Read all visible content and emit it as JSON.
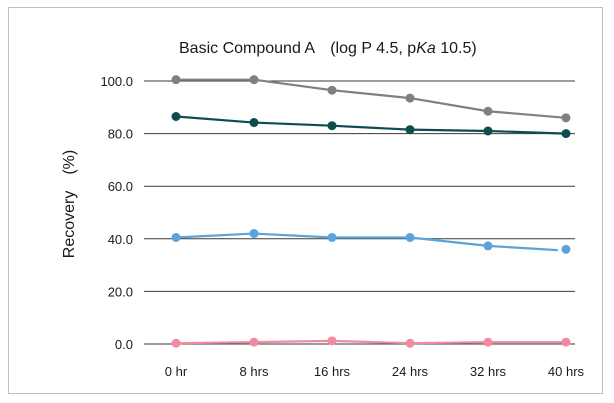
{
  "chart_data": {
    "type": "line",
    "title_parts": [
      "Basic Compound A　(log P 4.5, p",
      "Ka",
      " 10.5)"
    ],
    "ylabel": "Recovery　(%)",
    "xlabel": "",
    "categories": [
      "0 hr",
      "8 hrs",
      "16 hrs",
      "24 hrs",
      "32 hrs",
      "40 hrs"
    ],
    "ylim": [
      0,
      100
    ],
    "yticks": [
      "0.0",
      "20.0",
      "40.0",
      "60.0",
      "80.0",
      "100.0"
    ],
    "grid": true,
    "legend": "none",
    "series": [
      {
        "color": "#808080",
        "values": [
          100.5,
          100.5,
          96.5,
          93.5,
          88.5,
          86.0
        ],
        "line_to_last": true
      },
      {
        "color": "#0e4d4f",
        "values": [
          86.5,
          84.2,
          83.0,
          81.5,
          81.0,
          80.0
        ],
        "line_to_last": true
      },
      {
        "color": "#5ba3d9",
        "values": [
          40.5,
          42.0,
          40.5,
          40.5,
          37.3,
          36.0
        ],
        "line_to_last": false,
        "line_end_value": 35.7
      },
      {
        "color": "#f08ca0",
        "values": [
          0.3,
          0.7,
          1.2,
          0.3,
          0.7,
          0.7
        ],
        "line_to_last": true
      }
    ]
  }
}
